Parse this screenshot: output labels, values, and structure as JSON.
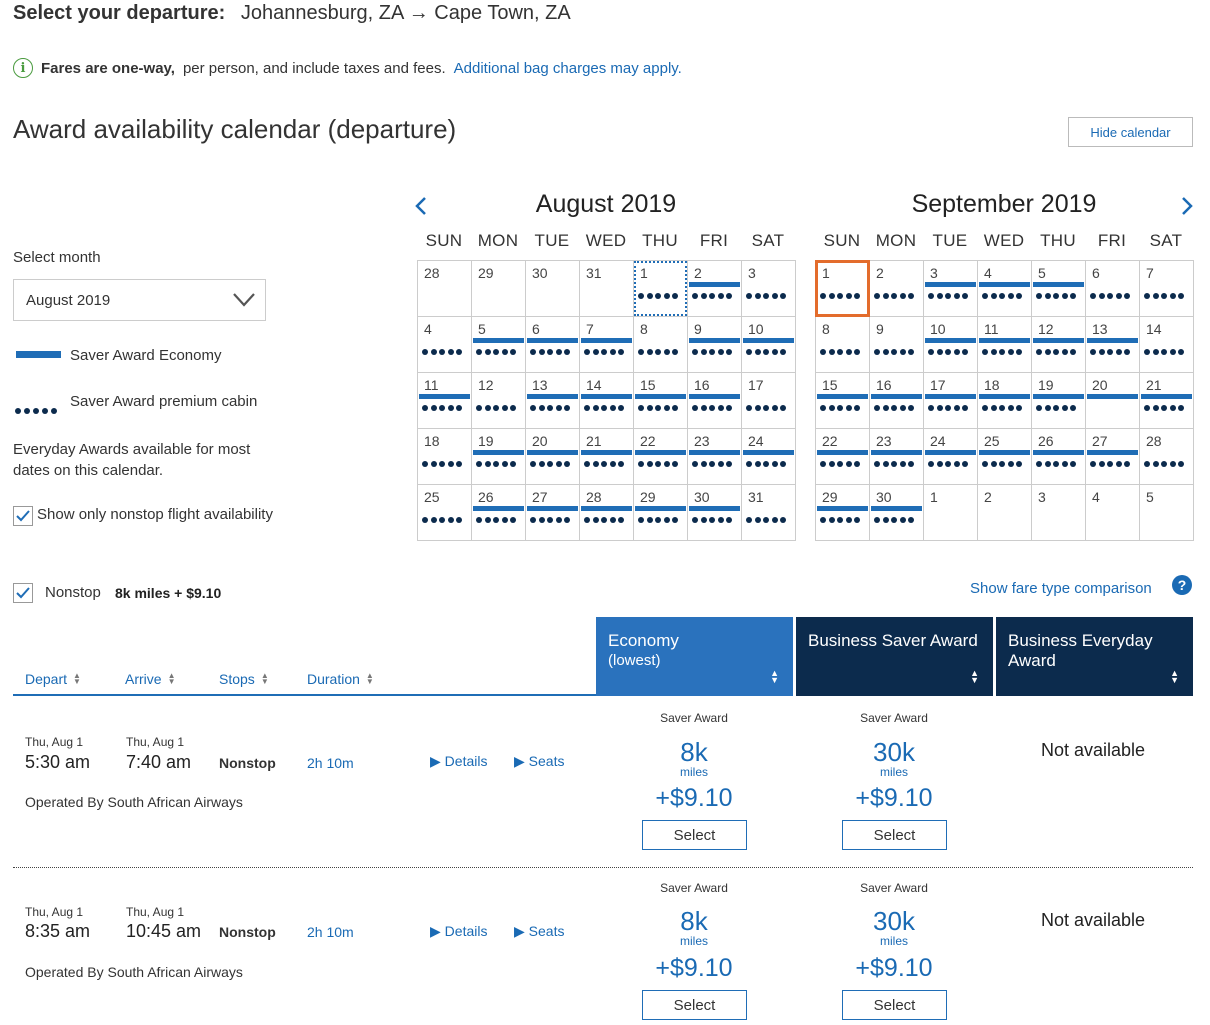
{
  "header": {
    "prefix": "Select your departure:",
    "route": "Johannesburg, ZA → Cape Town, ZA"
  },
  "info": {
    "bold": "Fares are one-way,",
    "text": "per person, and include taxes and fees.",
    "link": "Additional bag charges may apply."
  },
  "calendar_title": "Award availability calendar (departure)",
  "hide_calendar": "Hide calendar",
  "sidebar": {
    "select_month_label": "Select month",
    "selected_month": "August 2019",
    "legend_economy": "Saver Award Economy",
    "legend_premium": "Saver Award premium cabin",
    "everyday_note": "Everyday Awards available for most dates on this calendar.",
    "nonstop_only": "Show only nonstop flight availability"
  },
  "colors": {
    "accent": "#1f6db6",
    "navy": "#0c2b4d",
    "selected_outline": "#e36c2c"
  },
  "dow": [
    "SUN",
    "MON",
    "TUE",
    "WED",
    "THU",
    "FRI",
    "SAT"
  ],
  "months": [
    {
      "name": "August 2019",
      "cells": [
        {
          "d": "28",
          "bar": false,
          "dots": false
        },
        {
          "d": "29",
          "bar": false,
          "dots": false
        },
        {
          "d": "30",
          "bar": false,
          "dots": false
        },
        {
          "d": "31",
          "bar": false,
          "dots": false
        },
        {
          "d": "1",
          "bar": false,
          "dots": true,
          "sel": "dotted"
        },
        {
          "d": "2",
          "bar": true,
          "dots": true
        },
        {
          "d": "3",
          "bar": false,
          "dots": true
        },
        {
          "d": "4",
          "bar": false,
          "dots": true
        },
        {
          "d": "5",
          "bar": true,
          "dots": true
        },
        {
          "d": "6",
          "bar": true,
          "dots": true
        },
        {
          "d": "7",
          "bar": true,
          "dots": true
        },
        {
          "d": "8",
          "bar": false,
          "dots": true
        },
        {
          "d": "9",
          "bar": true,
          "dots": true
        },
        {
          "d": "10",
          "bar": true,
          "dots": true
        },
        {
          "d": "11",
          "bar": true,
          "dots": true
        },
        {
          "d": "12",
          "bar": false,
          "dots": true
        },
        {
          "d": "13",
          "bar": true,
          "dots": true
        },
        {
          "d": "14",
          "bar": true,
          "dots": true
        },
        {
          "d": "15",
          "bar": true,
          "dots": true
        },
        {
          "d": "16",
          "bar": true,
          "dots": true
        },
        {
          "d": "17",
          "bar": false,
          "dots": true
        },
        {
          "d": "18",
          "bar": false,
          "dots": true
        },
        {
          "d": "19",
          "bar": true,
          "dots": true
        },
        {
          "d": "20",
          "bar": true,
          "dots": true
        },
        {
          "d": "21",
          "bar": true,
          "dots": true
        },
        {
          "d": "22",
          "bar": true,
          "dots": true
        },
        {
          "d": "23",
          "bar": true,
          "dots": true
        },
        {
          "d": "24",
          "bar": true,
          "dots": true
        },
        {
          "d": "25",
          "bar": false,
          "dots": true
        },
        {
          "d": "26",
          "bar": true,
          "dots": true
        },
        {
          "d": "27",
          "bar": true,
          "dots": true
        },
        {
          "d": "28",
          "bar": true,
          "dots": true
        },
        {
          "d": "29",
          "bar": true,
          "dots": true
        },
        {
          "d": "30",
          "bar": true,
          "dots": true
        },
        {
          "d": "31",
          "bar": false,
          "dots": true
        }
      ]
    },
    {
      "name": "September 2019",
      "cells": [
        {
          "d": "1",
          "bar": false,
          "dots": true,
          "sel": "orange"
        },
        {
          "d": "2",
          "bar": false,
          "dots": true
        },
        {
          "d": "3",
          "bar": true,
          "dots": true
        },
        {
          "d": "4",
          "bar": true,
          "dots": true
        },
        {
          "d": "5",
          "bar": true,
          "dots": true
        },
        {
          "d": "6",
          "bar": false,
          "dots": true
        },
        {
          "d": "7",
          "bar": false,
          "dots": true
        },
        {
          "d": "8",
          "bar": false,
          "dots": true
        },
        {
          "d": "9",
          "bar": false,
          "dots": true
        },
        {
          "d": "10",
          "bar": true,
          "dots": true
        },
        {
          "d": "11",
          "bar": true,
          "dots": true
        },
        {
          "d": "12",
          "bar": true,
          "dots": true
        },
        {
          "d": "13",
          "bar": true,
          "dots": true
        },
        {
          "d": "14",
          "bar": false,
          "dots": true
        },
        {
          "d": "15",
          "bar": true,
          "dots": true
        },
        {
          "d": "16",
          "bar": true,
          "dots": true
        },
        {
          "d": "17",
          "bar": true,
          "dots": true
        },
        {
          "d": "18",
          "bar": true,
          "dots": true
        },
        {
          "d": "19",
          "bar": true,
          "dots": true
        },
        {
          "d": "20",
          "bar": true,
          "dots": false
        },
        {
          "d": "21",
          "bar": true,
          "dots": true
        },
        {
          "d": "22",
          "bar": true,
          "dots": true
        },
        {
          "d": "23",
          "bar": true,
          "dots": true
        },
        {
          "d": "24",
          "bar": true,
          "dots": true
        },
        {
          "d": "25",
          "bar": true,
          "dots": true
        },
        {
          "d": "26",
          "bar": true,
          "dots": true
        },
        {
          "d": "27",
          "bar": true,
          "dots": true
        },
        {
          "d": "28",
          "bar": false,
          "dots": true
        },
        {
          "d": "29",
          "bar": true,
          "dots": true
        },
        {
          "d": "30",
          "bar": true,
          "dots": true
        },
        {
          "d": "1",
          "bar": false,
          "dots": false
        },
        {
          "d": "2",
          "bar": false,
          "dots": false
        },
        {
          "d": "3",
          "bar": false,
          "dots": false
        },
        {
          "d": "4",
          "bar": false,
          "dots": false
        },
        {
          "d": "5",
          "bar": false,
          "dots": false
        }
      ]
    }
  ],
  "filter": {
    "label": "Nonstop",
    "value": "8k miles + $9.10"
  },
  "fare_compare": "Show fare type comparison",
  "sort_headers": {
    "depart": "Depart",
    "arrive": "Arrive",
    "stops": "Stops",
    "duration": "Duration"
  },
  "columns": {
    "economy": {
      "title": "Economy",
      "sub": "(lowest)"
    },
    "business_saver": {
      "title": "Business Saver Award"
    },
    "business_everyday": {
      "title": "Business Everyday Award"
    }
  },
  "flights": [
    {
      "depart_date": "Thu, Aug 1",
      "depart_time": "5:30 am",
      "arrive_date": "Thu, Aug 1",
      "arrive_time": "7:40 am",
      "stops": "Nonstop",
      "duration": "2h 10m",
      "details": "Details",
      "seats": "Seats",
      "operated_by": "Operated By South African Airways",
      "economy": {
        "label": "Saver Award",
        "miles": "8k",
        "unit": "miles",
        "tax": "+$9.10",
        "button": "Select"
      },
      "business_saver": {
        "label": "Saver Award",
        "miles": "30k",
        "unit": "miles",
        "tax": "+$9.10",
        "button": "Select"
      },
      "business_everyday": "Not available"
    },
    {
      "depart_date": "Thu, Aug 1",
      "depart_time": "8:35 am",
      "arrive_date": "Thu, Aug 1",
      "arrive_time": "10:45 am",
      "stops": "Nonstop",
      "duration": "2h 10m",
      "details": "Details",
      "seats": "Seats",
      "operated_by": "Operated By South African Airways",
      "economy": {
        "label": "Saver Award",
        "miles": "8k",
        "unit": "miles",
        "tax": "+$9.10",
        "button": "Select"
      },
      "business_saver": {
        "label": "Saver Award",
        "miles": "30k",
        "unit": "miles",
        "tax": "+$9.10",
        "button": "Select"
      },
      "business_everyday": "Not available"
    }
  ]
}
